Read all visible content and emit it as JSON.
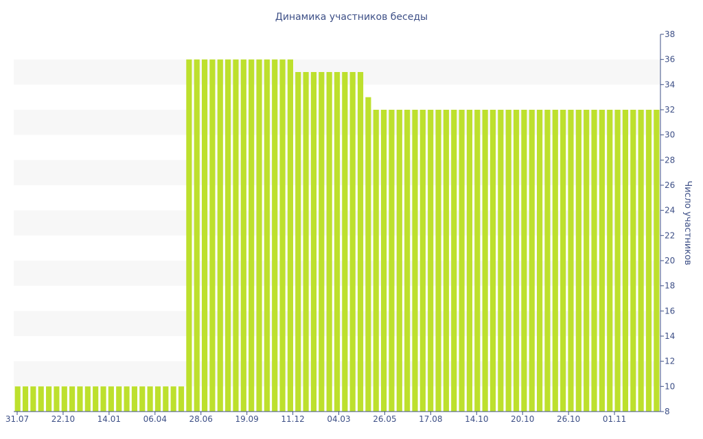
{
  "chart_data": {
    "type": "bar",
    "title": "Динамика участников беседы",
    "xlabel": "",
    "ylabel": "Число участников",
    "ylim": [
      8,
      38
    ],
    "yticks": [
      8,
      10,
      12,
      14,
      16,
      18,
      20,
      22,
      24,
      26,
      28,
      30,
      32,
      34,
      36,
      38
    ],
    "y_axis_side": "right",
    "x_tick_labels": [
      "31.07",
      "22.10",
      "14.01",
      "06.04",
      "28.06",
      "19.09",
      "11.12",
      "04.03",
      "26.05",
      "17.08",
      "14.10",
      "20.10",
      "26.10",
      "01.11"
    ],
    "grid": "alternating horizontal bands",
    "bar_color": "#bde02d",
    "band_color": "#f7f7f7",
    "text_color": "#3d4f86",
    "values": [
      10,
      10,
      10,
      10,
      10,
      10,
      10,
      10,
      10,
      10,
      10,
      10,
      10,
      10,
      10,
      10,
      10,
      10,
      10,
      10,
      10,
      10,
      36,
      36,
      36,
      36,
      36,
      36,
      36,
      36,
      36,
      36,
      36,
      36,
      36,
      36,
      35,
      35,
      35,
      35,
      35,
      35,
      35,
      35,
      35,
      33,
      32,
      32,
      32,
      32,
      32,
      32,
      32,
      32,
      32,
      32,
      32,
      32,
      32,
      32,
      32,
      32,
      32,
      32,
      32,
      32,
      32,
      32,
      32,
      32,
      32,
      32,
      32,
      32,
      32,
      32,
      32,
      32,
      32,
      32,
      32,
      32,
      32
    ]
  }
}
